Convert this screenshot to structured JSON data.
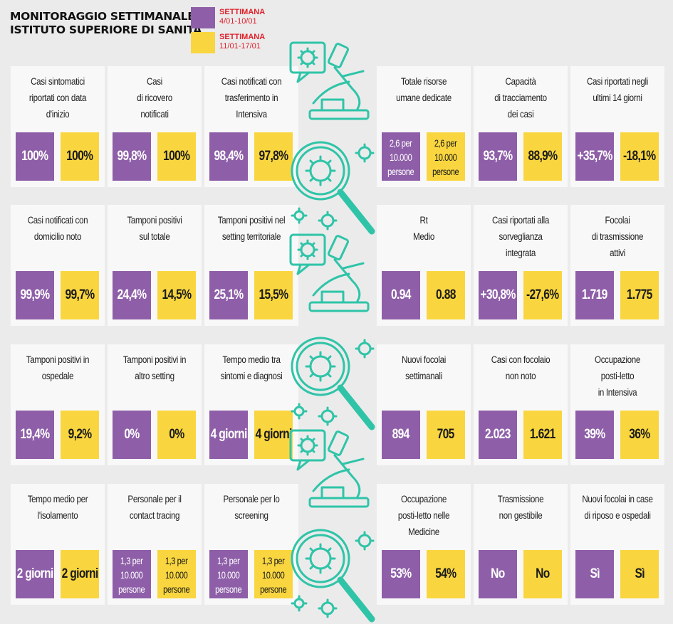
{
  "header": {
    "title_line1": "MONITORAGGIO SETTIMANALE",
    "title_line2": "ISTITUTO SUPERIORE DI SANITÀ"
  },
  "legend": {
    "week1": {
      "label": "SETTIMANA",
      "dates": "4/01-10/01",
      "color": "#8e5fa8"
    },
    "week2": {
      "label": "SETTIMANA",
      "dates": "11/01-17/01",
      "color": "#f9d63f"
    }
  },
  "cards": [
    {
      "label": "Casi sintomatici\nriportati con data\nd'inizio",
      "w1": "100%",
      "w2": "100%"
    },
    {
      "label": "Casi\ndi ricovero\nnotificati",
      "w1": "99,8%",
      "w2": "100%"
    },
    {
      "label": "Casi notificati con\ntrasferimento in\nIntensiva",
      "w1": "98,4%",
      "w2": "97,8%"
    },
    {
      "label": "Totale risorse\numane dedicate",
      "w1": "2,6 per\n10.000\npersone",
      "w2": "2,6 per\n10.000\npersone",
      "small": true
    },
    {
      "label": "Capacità\ndi tracciamento\ndei casi",
      "w1": "93,7%",
      "w2": "88,9%"
    },
    {
      "label": "Casi riportati negli\nultimi 14 giorni",
      "w1": "+35,7%",
      "w2": "-18,1%"
    },
    {
      "label": "Casi notificati con\ndomicilio noto",
      "w1": "99,9%",
      "w2": "99,7%"
    },
    {
      "label": "Tamponi positivi\nsul totale",
      "w1": "24,4%",
      "w2": "14,5%"
    },
    {
      "label": "Tamponi positivi nel\nsetting territoriale",
      "w1": "25,1%",
      "w2": "15,5%"
    },
    {
      "label": "Rt\nMedio",
      "w1": "0.94",
      "w2": "0.88"
    },
    {
      "label": "Casi riportati alla\nsorveglianza\nintegrata",
      "w1": "+30,8%",
      "w2": "-27,6%"
    },
    {
      "label": "Focolai\ndi trasmissione\nattivi",
      "w1": "1.719",
      "w2": "1.775"
    },
    {
      "label": "Tamponi positivi in\nospedale",
      "w1": "19,4%",
      "w2": "9,2%"
    },
    {
      "label": "Tamponi positivi in\naltro setting",
      "w1": "0%",
      "w2": "0%"
    },
    {
      "label": "Tempo medio tra\nsintomi e diagnosi",
      "w1": "4 giorni",
      "w2": "4 giorni"
    },
    {
      "label": "Nuovi focolai\nsettimanali",
      "w1": "894",
      "w2": "705"
    },
    {
      "label": "Casi con focolaio\nnon noto",
      "w1": "2.023",
      "w2": "1.621"
    },
    {
      "label": "Occupazione\nposti-letto\nin Intensiva",
      "w1": "39%",
      "w2": "36%"
    },
    {
      "label": "Tempo medio per\nl'isolamento",
      "w1": "2 giorni",
      "w2": "2 giorni"
    },
    {
      "label": "Personale per il\ncontact tracing",
      "w1": "1,3 per\n10.000\npersone",
      "w2": "1,3 per\n10.000\npersone",
      "small": true
    },
    {
      "label": "Personale per lo\nscreening",
      "w1": "1,3 per\n10.000\npersone",
      "w2": "1,3 per\n10.000\npersone",
      "small": true
    },
    {
      "label": "Occupazione\nposti-letto nelle\nMedicine",
      "w1": "53%",
      "w2": "54%"
    },
    {
      "label": "Trasmissione\nnon gestibile",
      "w1": "No",
      "w2": "No"
    },
    {
      "label": "Nuovi focolai in case\ndi riposo e ospedali",
      "w1": "Sì",
      "w2": "Sì"
    }
  ],
  "decoration": {
    "icons": [
      "virus-chat-icon",
      "microscope-icon",
      "magnifier-virus-icon"
    ],
    "color": "#2fc4a8"
  }
}
